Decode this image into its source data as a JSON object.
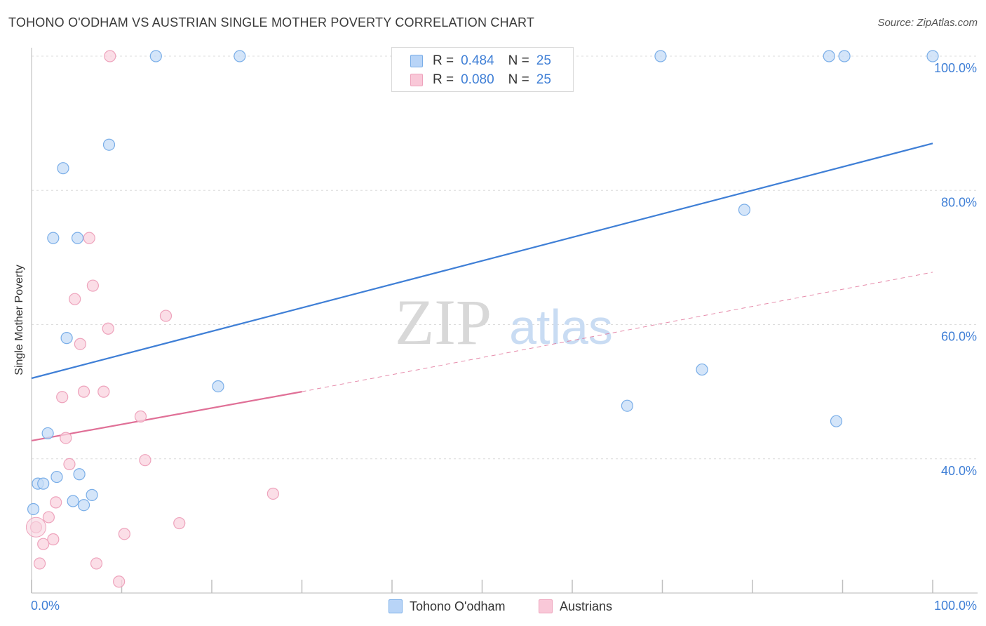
{
  "title": "TOHONO O'ODHAM VS AUSTRIAN SINGLE MOTHER POVERTY CORRELATION CHART",
  "source": "Source: ZipAtlas.com",
  "watermark": {
    "zip": "ZIP",
    "atlas": "atlas"
  },
  "legend_top": [
    {
      "r_label": "R =",
      "r_value": "0.484",
      "n_label": "N =",
      "n_value": "25"
    },
    {
      "r_label": "R =",
      "r_value": "0.080",
      "n_label": "N =",
      "n_value": "25"
    }
  ],
  "chart_data": {
    "type": "scatter",
    "title": "TOHONO O'ODHAM VS AUSTRIAN SINGLE MOTHER POVERTY CORRELATION CHART",
    "xlabel": "",
    "ylabel": "Single Mother Poverty",
    "xlim": [
      0,
      100
    ],
    "ylim": [
      20,
      100
    ],
    "x_tick_labels": [
      "0.0%",
      "100.0%"
    ],
    "y_ticks": [
      40,
      60,
      80,
      100
    ],
    "y_tick_labels": [
      "40.0%",
      "60.0%",
      "80.0%",
      "100.0%"
    ],
    "colors": {
      "blue": "#3f7fd6",
      "pink": "#e07097",
      "tick_label": "#3f7fd6"
    },
    "series": [
      {
        "name": "Tohono O'odham",
        "color": "#7aaee8",
        "fill": "#c6dcf7",
        "points": [
          [
            13.8,
            100
          ],
          [
            23.1,
            100
          ],
          [
            69.8,
            100
          ],
          [
            88.5,
            100
          ],
          [
            90.2,
            100
          ],
          [
            100,
            100
          ],
          [
            8.6,
            86.8
          ],
          [
            3.5,
            83.3
          ],
          [
            79.1,
            77.1
          ],
          [
            2.4,
            72.9
          ],
          [
            5.1,
            72.9
          ],
          [
            3.9,
            58
          ],
          [
            20.7,
            50.8
          ],
          [
            74.4,
            53.3
          ],
          [
            66.1,
            47.9
          ],
          [
            89.3,
            45.6
          ],
          [
            1.8,
            43.8
          ],
          [
            2.8,
            37.3
          ],
          [
            5.3,
            37.7
          ],
          [
            0.7,
            36.3
          ],
          [
            1.3,
            36.3
          ],
          [
            4.6,
            33.7
          ],
          [
            6.7,
            34.6
          ],
          [
            5.8,
            33.1
          ],
          [
            0.2,
            32.5
          ]
        ],
        "trend": {
          "x": [
            0,
            100
          ],
          "y": [
            52,
            87
          ]
        }
      },
      {
        "name": "Austrians",
        "color": "#eea3bc",
        "fill": "#f9d3df",
        "points": [
          [
            8.7,
            100
          ],
          [
            6.4,
            72.9
          ],
          [
            6.8,
            65.8
          ],
          [
            4.8,
            63.8
          ],
          [
            14.9,
            61.3
          ],
          [
            8.5,
            59.4
          ],
          [
            5.4,
            57.1
          ],
          [
            5.8,
            50
          ],
          [
            8.0,
            50
          ],
          [
            3.4,
            49.2
          ],
          [
            12.1,
            46.3
          ],
          [
            3.8,
            43.1
          ],
          [
            12.6,
            39.8
          ],
          [
            4.2,
            39.2
          ],
          [
            26.8,
            34.8
          ],
          [
            2.7,
            33.5
          ],
          [
            1.9,
            31.3
          ],
          [
            16.4,
            30.4
          ],
          [
            0.5,
            29.8
          ],
          [
            10.3,
            28.8
          ],
          [
            2.4,
            28
          ],
          [
            1.3,
            27.3
          ],
          [
            0.9,
            24.4
          ],
          [
            7.2,
            24.4
          ],
          [
            9.7,
            21.7
          ]
        ],
        "trend": {
          "x": [
            0,
            30
          ],
          "y": [
            42.7,
            50
          ]
        },
        "trend_extension": {
          "x": [
            30,
            100
          ],
          "y": [
            50,
            67.8
          ]
        }
      }
    ]
  },
  "legend_bottom": [
    "Tohono O'odham",
    "Austrians"
  ]
}
